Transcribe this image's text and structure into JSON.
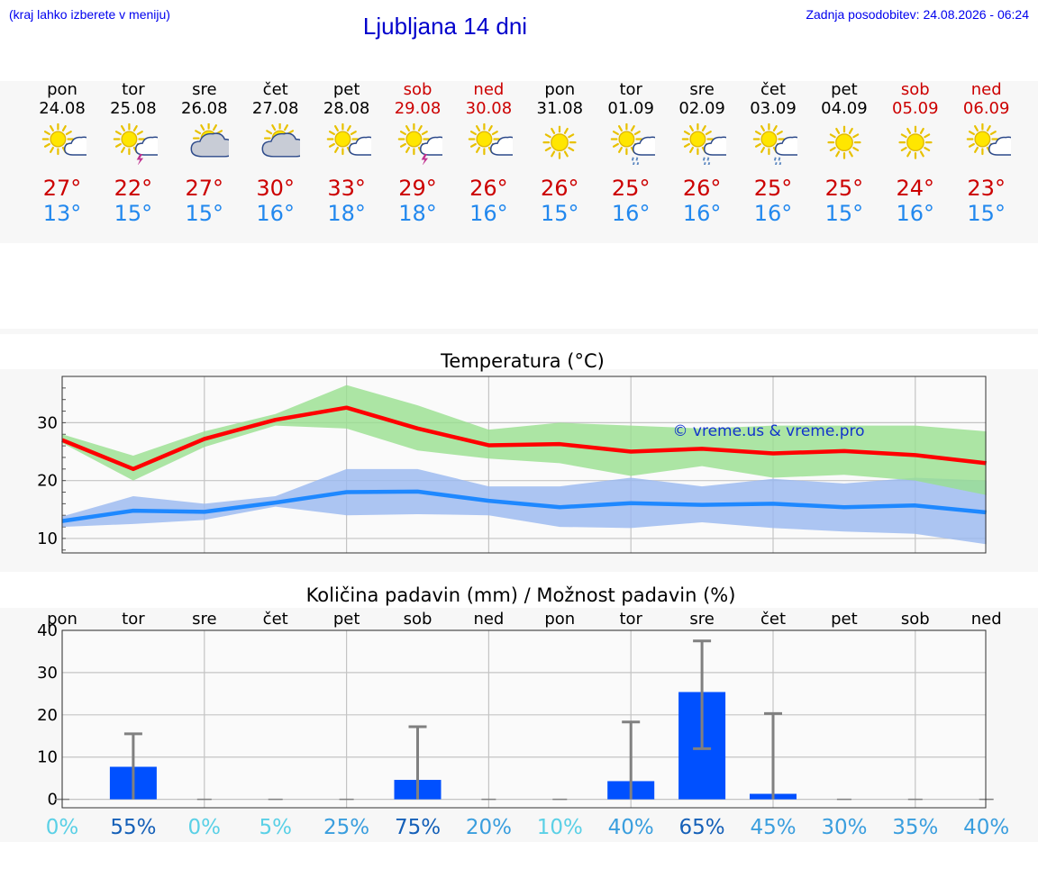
{
  "header": {
    "note": "(kraj lahko izberete v meniju)",
    "title": "Ljubljana 14 dni",
    "updated": "Zadnja posodobitev: 24.08.2026 - 06:24"
  },
  "days": [
    {
      "name": "pon",
      "date": "24.08",
      "weekend": false,
      "icon": "sun-cloud-icon",
      "tmax": "27°",
      "tmin": "13°"
    },
    {
      "name": "tor",
      "date": "25.08",
      "weekend": false,
      "icon": "sun-cloud-lightning-icon",
      "tmax": "22°",
      "tmin": "15°"
    },
    {
      "name": "sre",
      "date": "26.08",
      "weekend": false,
      "icon": "sun-grey-cloud-icon",
      "tmax": "27°",
      "tmin": "15°"
    },
    {
      "name": "čet",
      "date": "27.08",
      "weekend": false,
      "icon": "sun-grey-cloud-icon",
      "tmax": "30°",
      "tmin": "16°"
    },
    {
      "name": "pet",
      "date": "28.08",
      "weekend": false,
      "icon": "sun-cloud-icon",
      "tmax": "33°",
      "tmin": "18°"
    },
    {
      "name": "sob",
      "date": "29.08",
      "weekend": true,
      "icon": "sun-cloud-lightning-icon",
      "tmax": "29°",
      "tmin": "18°"
    },
    {
      "name": "ned",
      "date": "30.08",
      "weekend": true,
      "icon": "sun-cloud-icon",
      "tmax": "26°",
      "tmin": "16°"
    },
    {
      "name": "pon",
      "date": "31.08",
      "weekend": false,
      "icon": "sun-icon",
      "tmax": "26°",
      "tmin": "15°"
    },
    {
      "name": "tor",
      "date": "01.09",
      "weekend": false,
      "icon": "sun-cloud-rain-icon",
      "tmax": "25°",
      "tmin": "16°"
    },
    {
      "name": "sre",
      "date": "02.09",
      "weekend": false,
      "icon": "sun-cloud-rain-icon",
      "tmax": "26°",
      "tmin": "16°"
    },
    {
      "name": "čet",
      "date": "03.09",
      "weekend": false,
      "icon": "sun-cloud-rain-icon",
      "tmax": "25°",
      "tmin": "16°"
    },
    {
      "name": "pet",
      "date": "04.09",
      "weekend": false,
      "icon": "sun-icon",
      "tmax": "25°",
      "tmin": "15°"
    },
    {
      "name": "sob",
      "date": "05.09",
      "weekend": true,
      "icon": "sun-icon",
      "tmax": "24°",
      "tmin": "16°"
    },
    {
      "name": "ned",
      "date": "06.09",
      "weekend": true,
      "icon": "sun-cloud-icon",
      "tmax": "23°",
      "tmin": "15°"
    }
  ],
  "colors": {
    "max_line": "#ff0000",
    "max_band": "#99e08f",
    "min_line": "#1e88ff",
    "min_band": "#98b8f0",
    "bar": "#0050ff",
    "error_bar": "#808080",
    "weekend": "#cc0000"
  },
  "chart_data": [
    {
      "type": "line",
      "title": "Temperatura (°C)",
      "watermark": "© vreme.us & vreme.pro",
      "ylim": [
        7.5,
        38
      ],
      "yticks": [
        10,
        20,
        30
      ],
      "grid": true,
      "series": [
        {
          "values": [
            27,
            22,
            27.2,
            30.5,
            32.6,
            29,
            26.1,
            26.3,
            25,
            25.5,
            24.7,
            25.1,
            24.4,
            23
          ],
          "low": [
            26.5,
            20,
            25.8,
            29.5,
            29,
            25.2,
            23.8,
            23,
            20.8,
            22.5,
            20.5,
            21,
            20,
            17.5
          ],
          "high": [
            28,
            24.3,
            28.5,
            31.5,
            36.5,
            33,
            28.8,
            30,
            29.5,
            29,
            29.5,
            29.5,
            29.5,
            28.5
          ]
        },
        {
          "values": [
            13,
            14.8,
            14.6,
            16.2,
            18,
            18.1,
            16.5,
            15.4,
            16.1,
            15.8,
            16,
            15.4,
            15.7,
            14.5
          ],
          "low": [
            12,
            12.5,
            13.2,
            15.5,
            14,
            14.2,
            14,
            12,
            11.8,
            12.8,
            11.8,
            11.2,
            10.8,
            9
          ],
          "high": [
            13.8,
            17.3,
            16,
            17.3,
            22,
            22,
            19,
            19,
            20.5,
            19,
            20.3,
            19.5,
            20.5,
            20
          ]
        }
      ]
    },
    {
      "type": "bar",
      "title": "Količina padavin (mm) / Možnost padavin (%)",
      "categories": [
        "pon",
        "tor",
        "sre",
        "čet",
        "pet",
        "sob",
        "ned",
        "pon",
        "tor",
        "sre",
        "čet",
        "pet",
        "sob",
        "ned"
      ],
      "ylim": [
        -2,
        40
      ],
      "yticks": [
        0,
        10,
        20,
        30,
        40
      ],
      "values": [
        0,
        7.7,
        0,
        0,
        0,
        4.6,
        0,
        0,
        4.3,
        25.4,
        1.3,
        0,
        0,
        0
      ],
      "err_low": [
        0,
        0,
        0,
        0,
        0,
        0,
        0,
        0,
        0,
        12,
        0,
        0,
        0,
        0
      ],
      "err_high": [
        0,
        15.5,
        0,
        0,
        0,
        17.2,
        0,
        0,
        18.3,
        37.5,
        20.3,
        0,
        0,
        0
      ],
      "probability": [
        "0%",
        "55%",
        "0%",
        "5%",
        "25%",
        "75%",
        "20%",
        "10%",
        "40%",
        "65%",
        "45%",
        "30%",
        "35%",
        "40%"
      ],
      "probability_values": [
        0,
        55,
        0,
        5,
        25,
        75,
        20,
        10,
        40,
        65,
        45,
        30,
        35,
        40
      ]
    }
  ]
}
